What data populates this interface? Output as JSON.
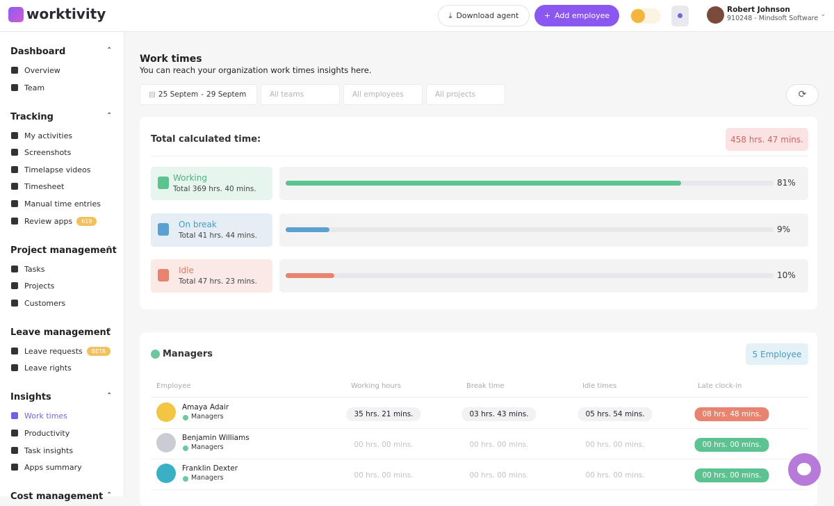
{
  "header": {
    "logo": "worktivity",
    "download_button": "Download agent",
    "add_button": "Add employee",
    "user_name": "Robert Johnson",
    "user_company": "910248 - Mindsoft Software"
  },
  "sidebar": [
    {
      "title": "Dashboard",
      "items": [
        {
          "label": "Overview"
        },
        {
          "label": "Team"
        }
      ]
    },
    {
      "title": "Tracking",
      "items": [
        {
          "label": "My activities"
        },
        {
          "label": "Screenshots"
        },
        {
          "label": "Timelapse videos"
        },
        {
          "label": "Timesheet"
        },
        {
          "label": "Manual time entries"
        },
        {
          "label": "Review apps",
          "badge": 619
        }
      ]
    },
    {
      "title": "Project management",
      "items": [
        {
          "label": "Tasks"
        },
        {
          "label": "Projects"
        },
        {
          "label": "Customers"
        }
      ]
    },
    {
      "title": "Leave management",
      "items": [
        {
          "label": "Leave requests",
          "badge": "BETA"
        },
        {
          "label": "Leave rights"
        }
      ]
    },
    {
      "title": "Insights",
      "items": [
        {
          "label": "Work times",
          "active": true
        },
        {
          "label": "Productivity"
        },
        {
          "label": "Task insights"
        },
        {
          "label": "Apps summary"
        }
      ]
    },
    {
      "title": "Cost management",
      "items": []
    }
  ],
  "page": {
    "title": "Work times",
    "subtitle": "You can reach your organization work times insights here.",
    "filters": {
      "date_from": "25 Septem",
      "date_separator": "-",
      "date_to": "29 Septem",
      "teams": "All teams",
      "employees": "All employees",
      "projects": "All projects"
    }
  },
  "summary": {
    "title": "Total calculated time:",
    "total": "458 hrs. 47 mins.",
    "rows": [
      {
        "label": "Working",
        "total": "Total 369 hrs. 40 mins.",
        "value": 81,
        "value_label": "81%",
        "color": "#5cc290",
        "text_color": "#4caf82",
        "bg": "#e6f6ef"
      },
      {
        "label": "On break",
        "total": "Total 41 hrs. 44 mins.",
        "value": 9,
        "value_label": "9%",
        "color": "#5aa0d0",
        "text_color": "#4a9ac4",
        "bg": "#e4eef4"
      },
      {
        "label": "Idle",
        "total": "Total 47 hrs. 23 mins.",
        "value": 10,
        "value_label": "10%",
        "color": "#e8836f",
        "text_color": "#e07a68",
        "bg": "#fbe9e6"
      }
    ]
  },
  "team": {
    "name": "Managers",
    "count": "5 Employee",
    "columns": [
      "Employee",
      "Working hours",
      "Break time",
      "Idle times",
      "Late clock-in"
    ],
    "rows": [
      {
        "name": "Amaya Adair",
        "group": "Managers",
        "working": "35 hrs. 21 mins.",
        "break": "03 hrs. 43 mins.",
        "idle": "05 hrs. 54 mins.",
        "late": "08 hrs. 48 mins.",
        "late_status": "late"
      },
      {
        "name": "Benjamin Williams",
        "group": "Managers",
        "working": "00 hrs. 00 mins.",
        "break": "00 hrs. 00 mins.",
        "idle": "00 hrs. 00 mins.",
        "late": "00 hrs. 00 mins.",
        "late_status": "ok"
      },
      {
        "name": "Franklin Dexter",
        "group": "Managers",
        "working": "00 hrs. 00 mins.",
        "break": "00 hrs. 00 mins.",
        "idle": "00 hrs. 00 mins.",
        "late": "00 hrs. 00 mins.",
        "late_status": "ok"
      }
    ]
  }
}
